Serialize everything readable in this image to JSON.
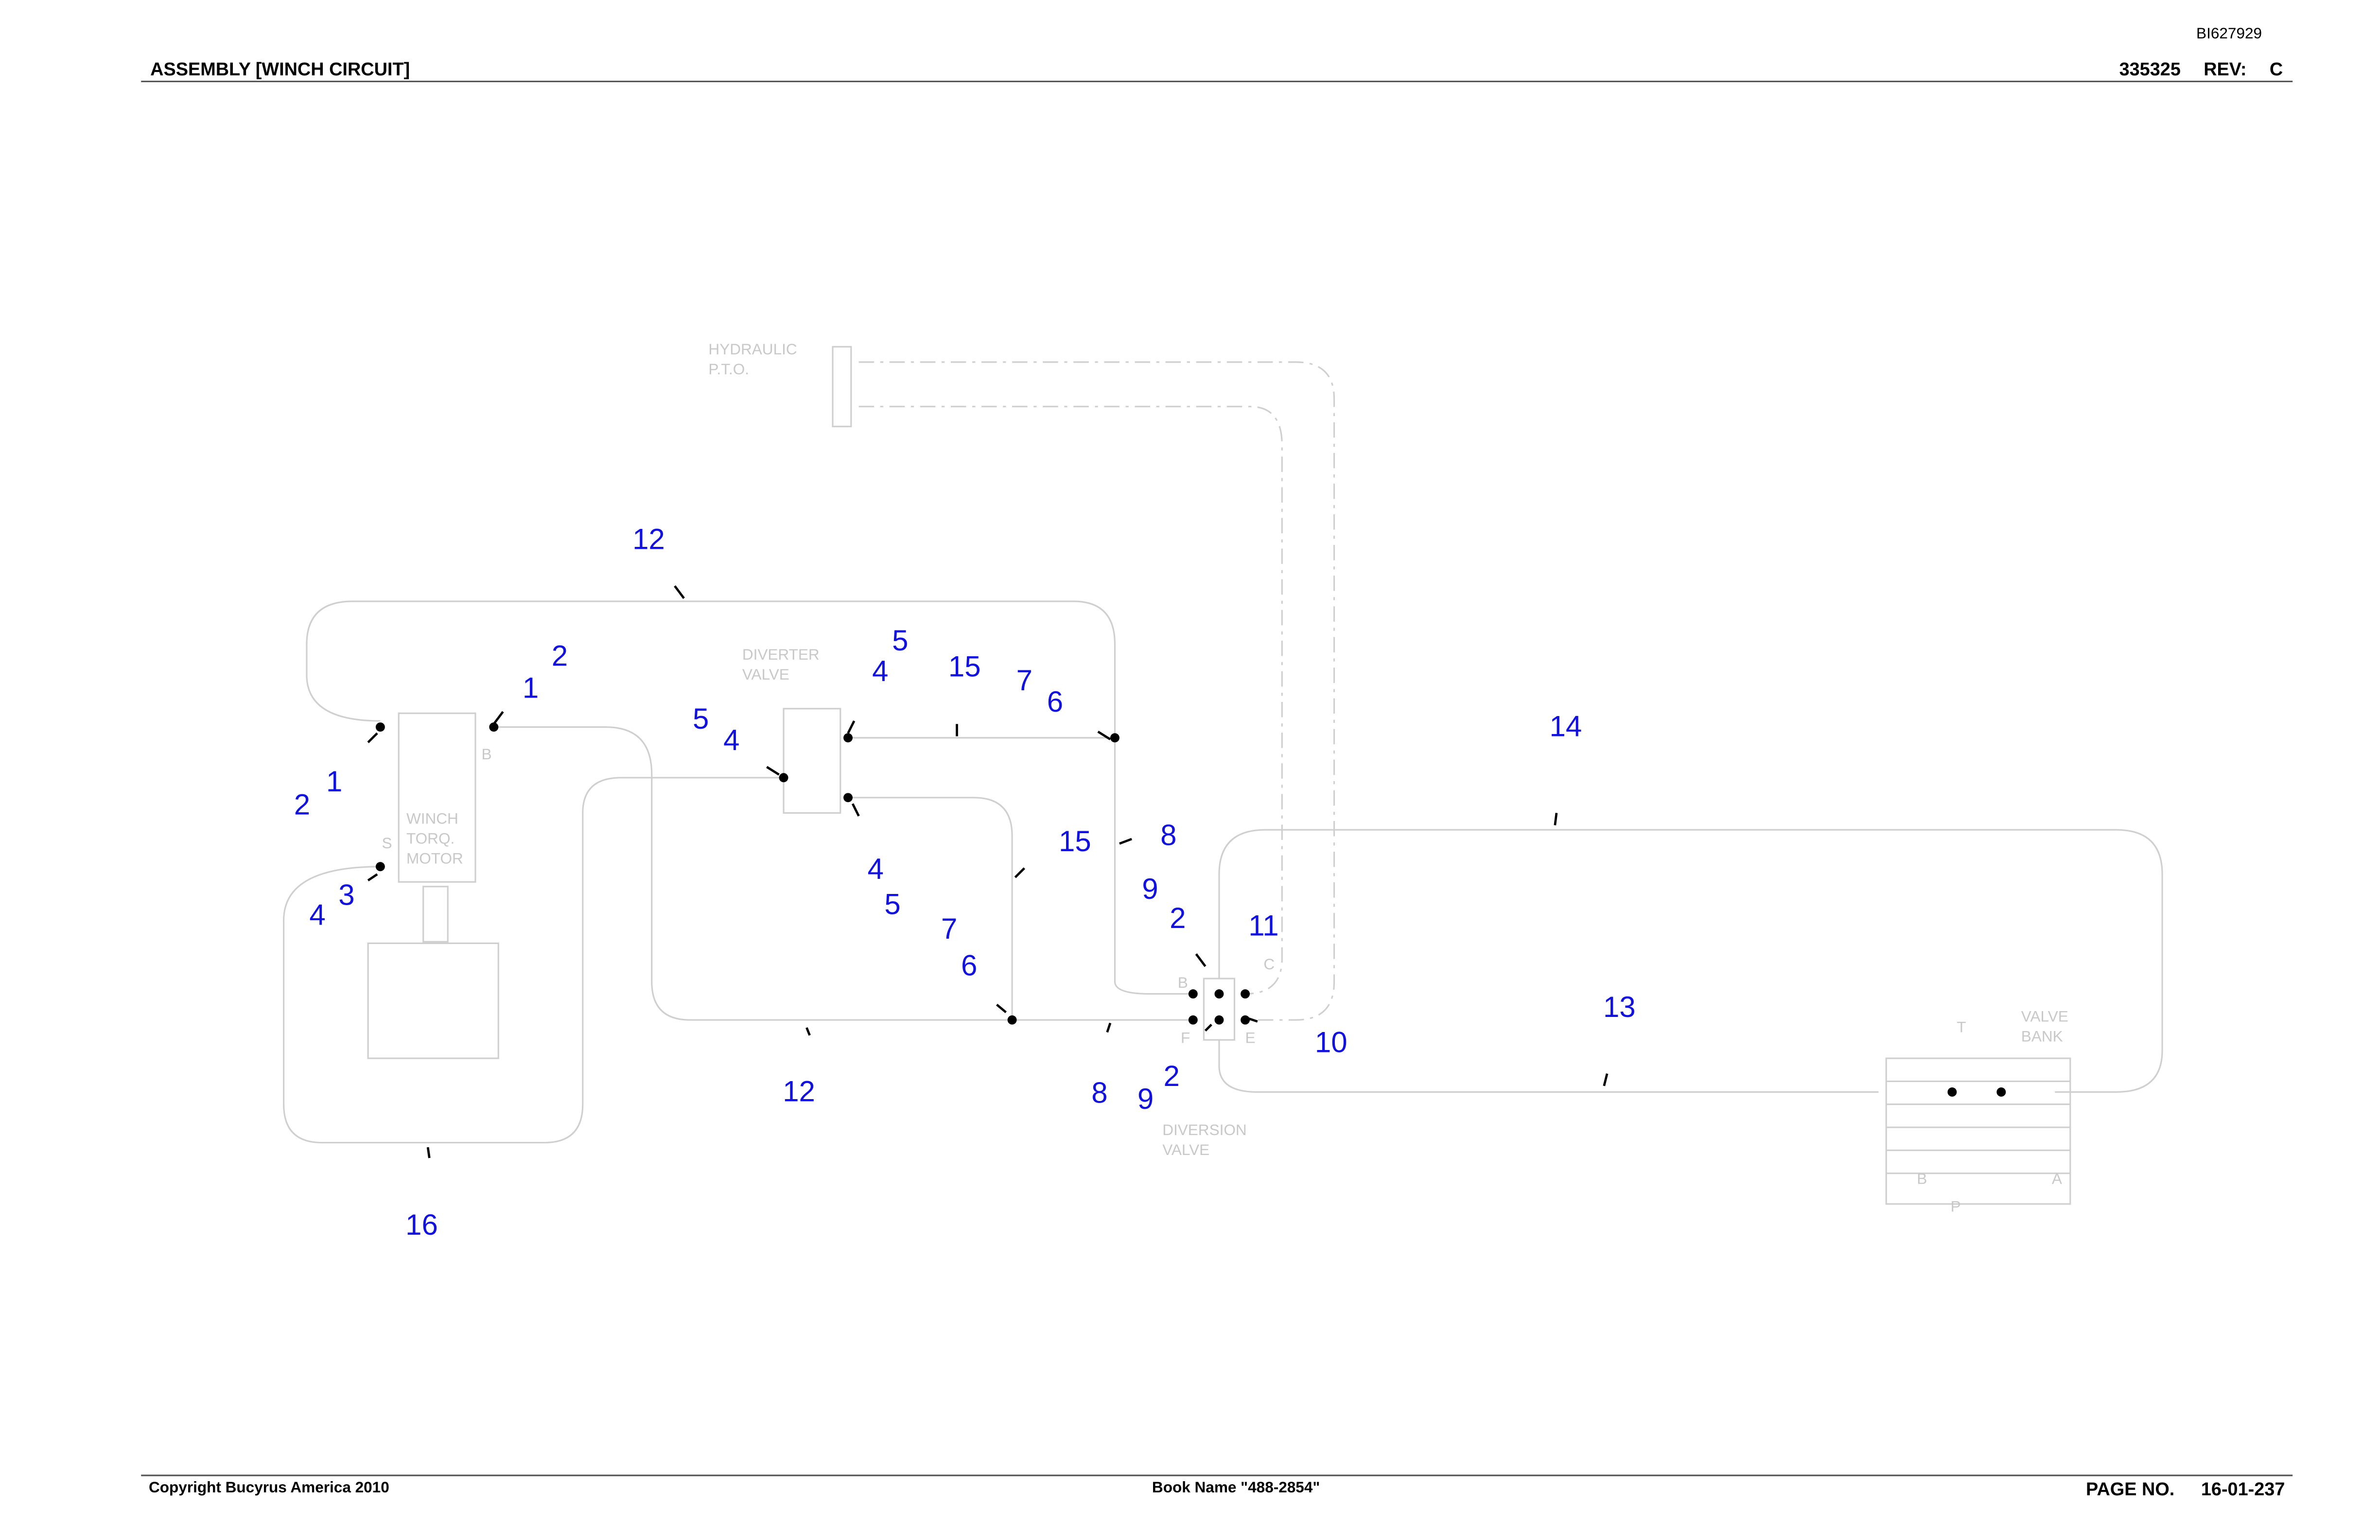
{
  "header": {
    "doc_id": "BI627929",
    "title": "ASSEMBLY [WINCH CIRCUIT]",
    "part_number": "335325",
    "rev_label": "REV:",
    "rev": "C"
  },
  "components": {
    "pto": [
      "HYDRAULIC",
      "P.T.O."
    ],
    "diverter": [
      "DIVERTER",
      "VALVE"
    ],
    "motor": [
      "WINCH",
      "TORQ.",
      "MOTOR"
    ],
    "diversion": [
      "DIVERSION",
      "VALVE"
    ],
    "bank": [
      "VALVE",
      "BANK"
    ],
    "ports": [
      "B",
      "S",
      "B",
      "C",
      "F",
      "E",
      "T",
      "B",
      "A",
      "P"
    ]
  },
  "callouts": [
    "12",
    "2",
    "1",
    "2",
    "1",
    "5",
    "4",
    "15",
    "7",
    "6",
    "5",
    "4",
    "14",
    "15",
    "8",
    "4",
    "5",
    "3",
    "4",
    "9",
    "2",
    "11",
    "7",
    "6",
    "13",
    "10",
    "12",
    "8",
    "9",
    "2",
    "16"
  ],
  "footer": {
    "copyright": "Copyright Bucyrus America 2010",
    "book": "Book Name \"488-2854\"",
    "page_label": "PAGE NO.",
    "page": "16-01-237"
  }
}
